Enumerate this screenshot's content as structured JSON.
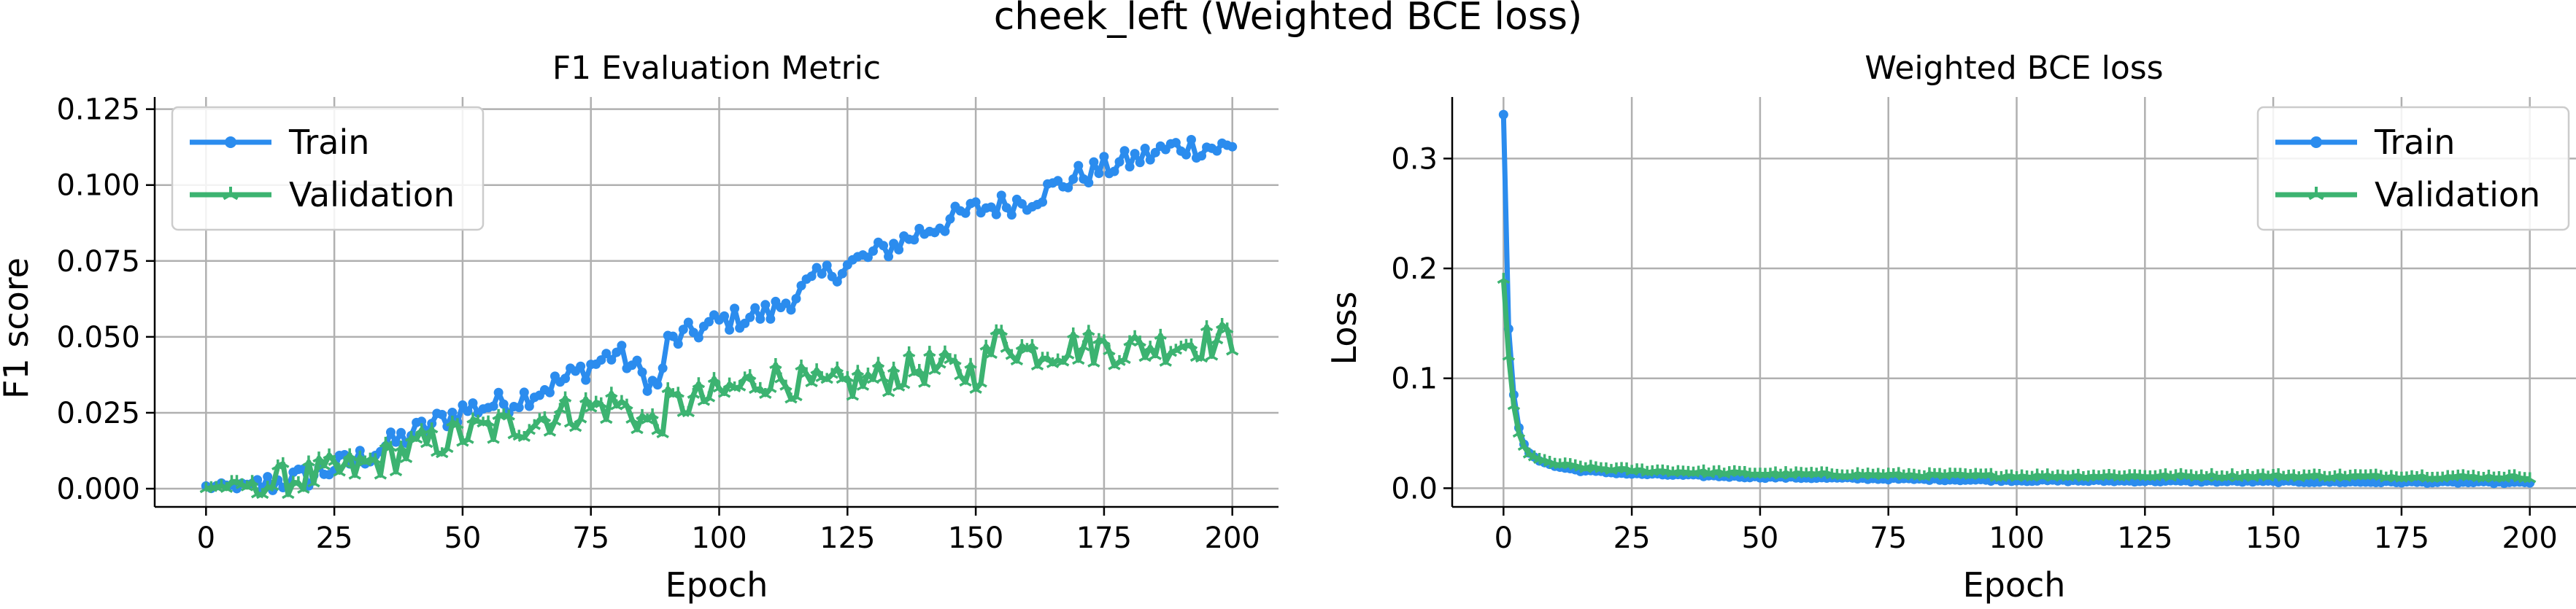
{
  "suptitle": "cheek_left (Weighted BCE loss)",
  "colors": {
    "train": "#2b8cee",
    "validation": "#3cb371",
    "grid": "#b0b0b0",
    "axis": "#000000"
  },
  "chart_data": [
    {
      "type": "line",
      "title": "F1 Evaluation Metric",
      "xlabel": "Epoch",
      "ylabel": "F1 score",
      "xlim": [
        -10,
        209
      ],
      "ylim": [
        -0.006,
        0.129
      ],
      "xticks": [
        0,
        25,
        50,
        75,
        100,
        125,
        150,
        175,
        200
      ],
      "yticks": [
        0.0,
        0.025,
        0.05,
        0.075,
        0.1,
        0.125
      ],
      "ytick_labels": [
        "0.000",
        "0.025",
        "0.050",
        "0.075",
        "0.100",
        "0.125"
      ],
      "grid": true,
      "legend_position": "upper left",
      "series": [
        {
          "name": "Train",
          "color": "#2b8cee",
          "marker": "circle",
          "anchors": [
            [
              0,
              0.0005
            ],
            [
              10,
              0.001
            ],
            [
              20,
              0.004
            ],
            [
              30,
              0.01
            ],
            [
              40,
              0.018
            ],
            [
              50,
              0.026
            ],
            [
              60,
              0.029
            ],
            [
              70,
              0.036
            ],
            [
              80,
              0.045
            ],
            [
              88,
              0.033
            ],
            [
              90,
              0.048
            ],
            [
              100,
              0.055
            ],
            [
              110,
              0.058
            ],
            [
              120,
              0.07
            ],
            [
              130,
              0.077
            ],
            [
              140,
              0.085
            ],
            [
              150,
              0.092
            ],
            [
              160,
              0.095
            ],
            [
              170,
              0.103
            ],
            [
              180,
              0.108
            ],
            [
              190,
              0.113
            ],
            [
              200,
              0.112
            ]
          ],
          "noise": 0.004
        },
        {
          "name": "Validation",
          "color": "#3cb371",
          "marker": "tri",
          "anchors": [
            [
              0,
              0.0005
            ],
            [
              10,
              0.001
            ],
            [
              20,
              0.004
            ],
            [
              30,
              0.007
            ],
            [
              40,
              0.013
            ],
            [
              50,
              0.018
            ],
            [
              60,
              0.021
            ],
            [
              70,
              0.025
            ],
            [
              80,
              0.028
            ],
            [
              88,
              0.02
            ],
            [
              90,
              0.027
            ],
            [
              100,
              0.031
            ],
            [
              110,
              0.037
            ],
            [
              120,
              0.033
            ],
            [
              130,
              0.036
            ],
            [
              140,
              0.04
            ],
            [
              150,
              0.038
            ],
            [
              155,
              0.05
            ],
            [
              160,
              0.045
            ],
            [
              170,
              0.047
            ],
            [
              180,
              0.046
            ],
            [
              190,
              0.048
            ],
            [
              200,
              0.049
            ]
          ],
          "noise": 0.006
        }
      ]
    },
    {
      "type": "line",
      "title": "Weighted BCE loss",
      "xlabel": "Epoch",
      "ylabel": "Loss",
      "xlim": [
        -10,
        209
      ],
      "ylim": [
        -0.017,
        0.356
      ],
      "xticks": [
        0,
        25,
        50,
        75,
        100,
        125,
        150,
        175,
        200
      ],
      "yticks": [
        0.0,
        0.1,
        0.2,
        0.3
      ],
      "ytick_labels": [
        "0.0",
        "0.1",
        "0.2",
        "0.3"
      ],
      "grid": true,
      "legend_position": "upper right",
      "series": [
        {
          "name": "Train",
          "color": "#2b8cee",
          "marker": "circle",
          "anchors": [
            [
              0,
              0.34
            ],
            [
              1,
              0.145
            ],
            [
              2,
              0.085
            ],
            [
              3,
              0.055
            ],
            [
              4,
              0.04
            ],
            [
              5,
              0.032
            ],
            [
              7,
              0.025
            ],
            [
              10,
              0.02
            ],
            [
              15,
              0.016
            ],
            [
              25,
              0.013
            ],
            [
              50,
              0.01
            ],
            [
              100,
              0.007
            ],
            [
              150,
              0.006
            ],
            [
              200,
              0.005
            ]
          ],
          "noise": 0.0008
        },
        {
          "name": "Validation",
          "color": "#3cb371",
          "marker": "tri",
          "anchors": [
            [
              0,
              0.19
            ],
            [
              1,
              0.12
            ],
            [
              2,
              0.075
            ],
            [
              3,
              0.05
            ],
            [
              4,
              0.038
            ],
            [
              5,
              0.031
            ],
            [
              7,
              0.026
            ],
            [
              10,
              0.022
            ],
            [
              15,
              0.019
            ],
            [
              25,
              0.016
            ],
            [
              50,
              0.013
            ],
            [
              100,
              0.011
            ],
            [
              150,
              0.011
            ],
            [
              200,
              0.01
            ]
          ],
          "noise": 0.0015
        }
      ]
    }
  ]
}
